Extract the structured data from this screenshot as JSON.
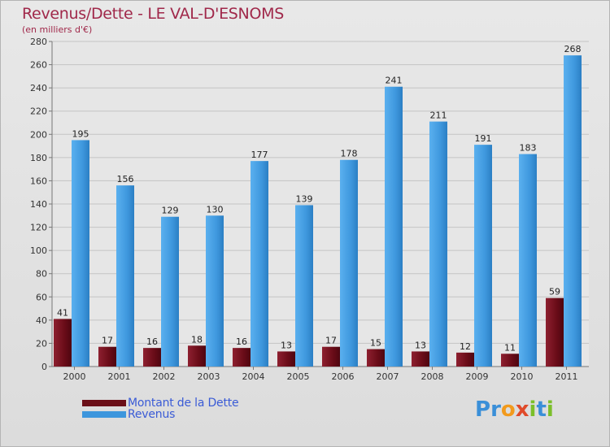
{
  "header": {
    "title": "Revenus/Dette - LE VAL-D'ESNOMS",
    "unit": "(en milliers d'€)"
  },
  "chart_data": {
    "type": "bar",
    "title": "Revenus/Dette - LE VAL-D'ESNOMS",
    "ylabel": "(en milliers d'€)",
    "xlabel": "",
    "ylim": [
      0,
      280
    ],
    "yticks": [
      0,
      20,
      40,
      60,
      80,
      100,
      120,
      140,
      160,
      180,
      200,
      220,
      240,
      260,
      280
    ],
    "grid": true,
    "legend_position": "bottom-left",
    "categories": [
      "2000",
      "2001",
      "2002",
      "2003",
      "2004",
      "2005",
      "2006",
      "2007",
      "2008",
      "2009",
      "2010",
      "2011"
    ],
    "series": [
      {
        "name": "Montant de la Dette",
        "color": "#7a1020",
        "values": [
          41,
          17,
          16,
          18,
          16,
          13,
          17,
          15,
          13,
          12,
          11,
          59
        ]
      },
      {
        "name": "Revenus",
        "color": "#4aa3e8",
        "values": [
          195,
          156,
          129,
          130,
          177,
          139,
          178,
          241,
          211,
          191,
          183,
          268
        ]
      }
    ]
  },
  "legend": {
    "items": [
      {
        "label": "Montant de la Dette",
        "color": "#6b0f18"
      },
      {
        "label": "Revenus",
        "color": "#3d96dd"
      }
    ]
  },
  "logo": {
    "letters": [
      "P",
      "r",
      "o",
      "x",
      "i",
      "t",
      "i"
    ],
    "colors": [
      "#3a8fd8",
      "#3a8fd8",
      "#f29a1c",
      "#e04a2a",
      "#7bbf2a",
      "#3a8fd8",
      "#7bbf2a"
    ]
  }
}
